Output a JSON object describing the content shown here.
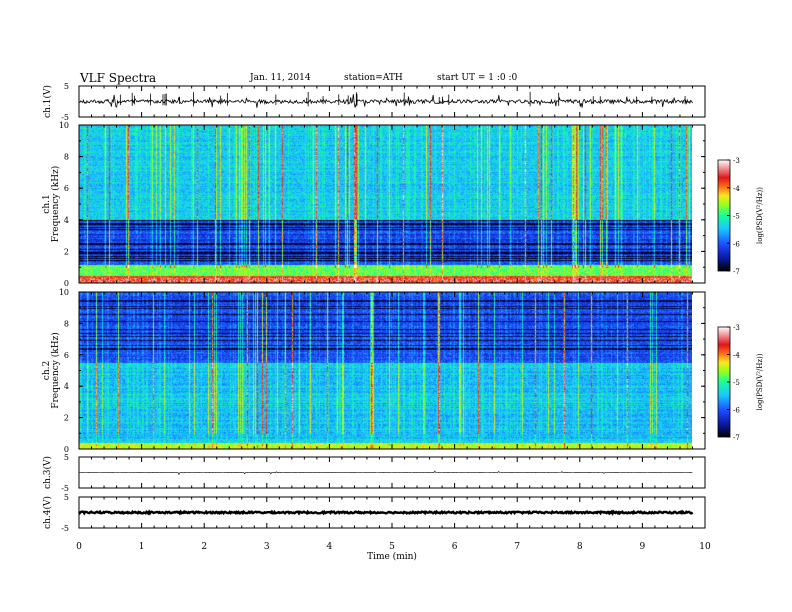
{
  "header": {
    "title": "VLF Spectra",
    "date": "Jan. 11, 2014",
    "station": "station=ATH",
    "start": "start UT = 1 :0 :0"
  },
  "chart_data": [
    {
      "type": "line",
      "panel": "waveform",
      "ylabel": "ch.1(V)",
      "ylim": [
        -5,
        5
      ],
      "yticks": [
        "5",
        "-5"
      ],
      "baseline": 0,
      "description_of_trace": "noisy waveform near 0 V with sporadic spikes"
    },
    {
      "type": "heatmap",
      "panel": "spectrogram",
      "ylabel": "ch.1 Frequency (kHz)",
      "ylim": [
        0,
        10
      ],
      "yticks": [
        "0",
        "2",
        "4",
        "6",
        "8",
        "10"
      ],
      "colorbar": {
        "label": "log(PSD(V²/Hz))",
        "range": [
          -7,
          -3
        ],
        "ticks": [
          "-3",
          "-4",
          "-5",
          "-6",
          "-7"
        ],
        "colormap": [
          "#000000",
          "#0a1aa6",
          "#1e4cff",
          "#18c8ff",
          "#19ff99",
          "#9aff1a",
          "#ffe51a",
          "#ff6a1a",
          "#e0161c",
          "#ffffff"
        ]
      },
      "dominant_band_kHz": [
        [
          0,
          4,
          "blue/black"
        ],
        [
          4,
          10,
          "cyan/green"
        ]
      ]
    },
    {
      "type": "heatmap",
      "panel": "spectrogram",
      "ylabel": "ch.2 Frequency (kHz)",
      "ylim": [
        0,
        10
      ],
      "yticks": [
        "0",
        "2",
        "4",
        "6",
        "8",
        "10"
      ],
      "colorbar": {
        "label": "log(PSD(V²/Hz))",
        "range": [
          -7,
          -3
        ],
        "ticks": [
          "-3",
          "-4",
          "-5",
          "-6",
          "-7"
        ]
      },
      "dominant_band_kHz": [
        [
          0,
          5,
          "cyan/green"
        ],
        [
          5,
          10,
          "blue/black"
        ]
      ]
    },
    {
      "type": "line",
      "panel": "waveform",
      "ylabel": "ch.3(V)",
      "ylim": [
        -5,
        5
      ],
      "yticks": [
        "5",
        "-5"
      ],
      "baseline": 0
    },
    {
      "type": "line",
      "panel": "waveform",
      "ylabel": "ch.4(V)",
      "ylim": [
        -5,
        5
      ],
      "yticks": [
        "5",
        "-5"
      ],
      "baseline": 0
    }
  ],
  "xaxis": {
    "label": "Time (min)",
    "range": [
      0,
      10
    ],
    "ticks": [
      "0",
      "1",
      "2",
      "3",
      "4",
      "5",
      "6",
      "7",
      "8",
      "9",
      "10"
    ],
    "data_end": 9.8
  }
}
